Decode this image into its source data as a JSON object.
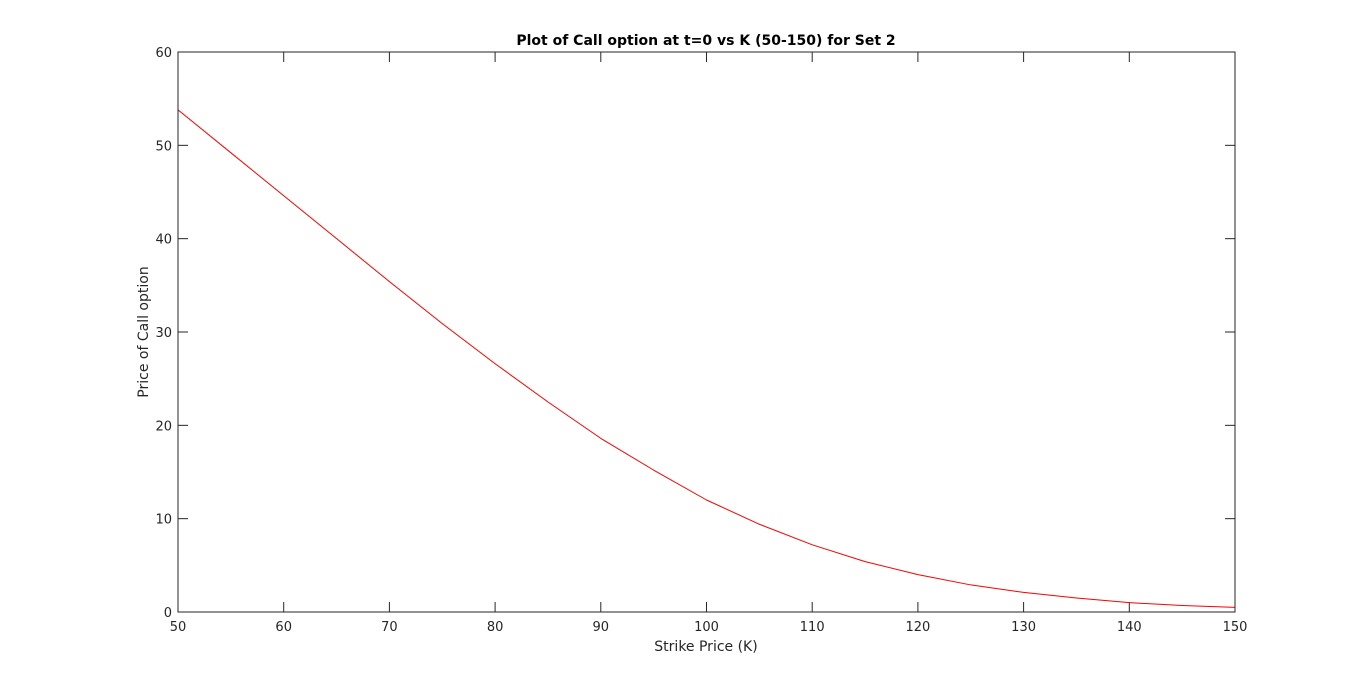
{
  "chart_data": {
    "type": "line",
    "title": "Plot of Call option at t=0 vs K (50-150) for Set 2",
    "xlabel": "Strike Price (K)",
    "ylabel": "Price of Call option",
    "xlim": [
      50,
      150
    ],
    "ylim": [
      0,
      60
    ],
    "xticks": [
      50,
      60,
      70,
      80,
      90,
      100,
      110,
      120,
      130,
      140,
      150
    ],
    "yticks": [
      0,
      10,
      20,
      30,
      40,
      50,
      60
    ],
    "xtick_labels": [
      "50",
      "60",
      "70",
      "80",
      "90",
      "100",
      "110",
      "120",
      "130",
      "140",
      "150"
    ],
    "ytick_labels": [
      "0",
      "10",
      "20",
      "30",
      "40",
      "50",
      "60"
    ],
    "grid": false,
    "legend": "none",
    "series": [
      {
        "color": "#ff0000",
        "x": [
          50,
          55,
          60,
          65,
          70,
          75,
          80,
          85,
          90,
          95,
          100,
          105,
          110,
          115,
          120,
          125,
          130,
          135,
          140,
          145,
          150
        ],
        "y": [
          53.8,
          49.2,
          44.6,
          40.0,
          35.4,
          30.9,
          26.6,
          22.5,
          18.6,
          15.2,
          12.0,
          9.4,
          7.2,
          5.4,
          4.0,
          2.9,
          2.1,
          1.5,
          1.0,
          0.7,
          0.5
        ]
      }
    ]
  }
}
